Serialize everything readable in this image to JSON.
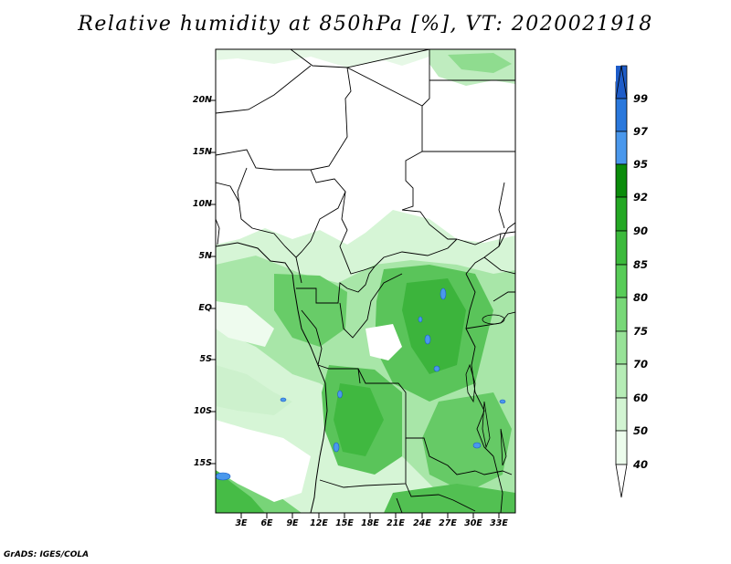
{
  "title": "Relative humidity at 850hPa [%], VT: 2020021918",
  "credit": "GrADS: IGES/COLA",
  "axes": {
    "lat_labels": [
      "20N",
      "15N",
      "10N",
      "5N",
      "EQ",
      "5S",
      "10S",
      "15S"
    ],
    "lon_labels": [
      "3E",
      "6E",
      "9E",
      "12E",
      "15E",
      "18E",
      "21E",
      "24E",
      "27E",
      "30E",
      "33E"
    ]
  },
  "colorbar": {
    "levels": [
      "99",
      "97",
      "95",
      "92",
      "90",
      "85",
      "80",
      "75",
      "70",
      "60",
      "50",
      "40"
    ],
    "colors": [
      "#1e5cc8",
      "#2a78dc",
      "#4a98ec",
      "#0b8c0b",
      "#24a824",
      "#3cba3c",
      "#58cc58",
      "#78d878",
      "#98e298",
      "#b6ecb6",
      "#d2f4d2",
      "#ecfcec"
    ]
  },
  "map_colors": {
    "land_dry": "#ffffff",
    "humid_low": "#d4f4d4",
    "humid_mid": "#7ad87a",
    "humid_high": "#3cba3c",
    "saturated": "#4a98ec",
    "borders": "#000000"
  }
}
